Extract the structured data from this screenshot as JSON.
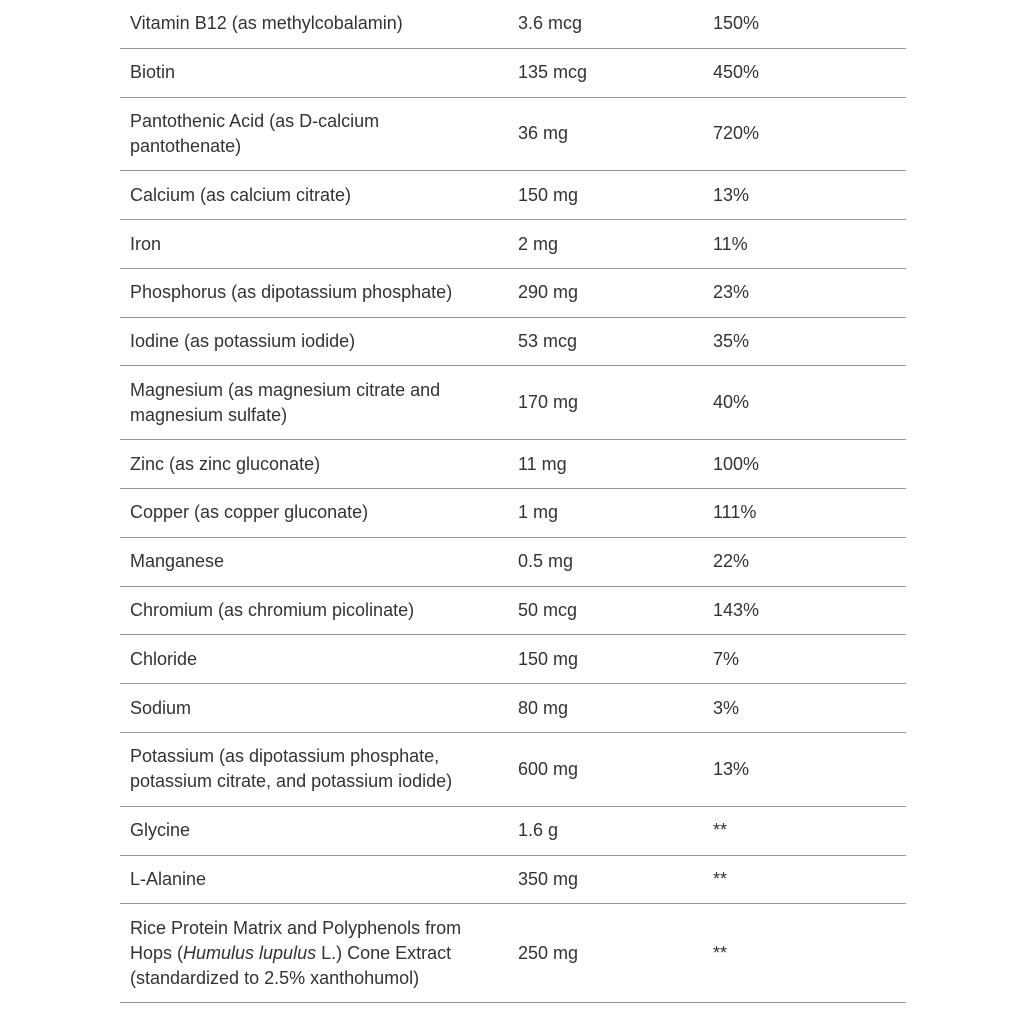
{
  "page": {
    "background_color": "#ffffff",
    "text_color": "#333333",
    "divider_color": "#979797"
  },
  "table": {
    "kind": "supplement-facts",
    "columns": [
      "nutrient",
      "amount_per_serving",
      "percent_daily_value"
    ],
    "rows": [
      {
        "name": [
          {
            "t": "Vitamin B12 (as methylcobalamin)"
          }
        ],
        "amount": "3.6 mcg",
        "dv": "150%"
      },
      {
        "name": [
          {
            "t": "Biotin"
          }
        ],
        "amount": "135 mcg",
        "dv": "450%"
      },
      {
        "name": [
          {
            "t": "Pantothenic Acid (as D-calcium pantothenate)"
          }
        ],
        "amount": "36 mg",
        "dv": "720%"
      },
      {
        "name": [
          {
            "t": "Calcium (as calcium citrate)"
          }
        ],
        "amount": "150 mg",
        "dv": "13%"
      },
      {
        "name": [
          {
            "t": "Iron"
          }
        ],
        "amount": "2 mg",
        "dv": "11%"
      },
      {
        "name": [
          {
            "t": "Phosphorus (as dipotassium phosphate)"
          }
        ],
        "amount": "290 mg",
        "dv": "23%"
      },
      {
        "name": [
          {
            "t": "Iodine (as potassium iodide)"
          }
        ],
        "amount": "53 mcg",
        "dv": "35%"
      },
      {
        "name": [
          {
            "t": "Magnesium (as magnesium citrate and magnesium sulfate)"
          }
        ],
        "amount": "170 mg",
        "dv": "40%"
      },
      {
        "name": [
          {
            "t": "Zinc (as zinc gluconate)"
          }
        ],
        "amount": "11 mg",
        "dv": "100%"
      },
      {
        "name": [
          {
            "t": "Copper (as copper gluconate)"
          }
        ],
        "amount": "1 mg",
        "dv": "111%"
      },
      {
        "name": [
          {
            "t": "Manganese"
          }
        ],
        "amount": "0.5 mg",
        "dv": "22%"
      },
      {
        "name": [
          {
            "t": "Chromium (as chromium picolinate)"
          }
        ],
        "amount": "50 mcg",
        "dv": "143%"
      },
      {
        "name": [
          {
            "t": "Chloride"
          }
        ],
        "amount": "150 mg",
        "dv": "7%"
      },
      {
        "name": [
          {
            "t": "Sodium"
          }
        ],
        "amount": "80 mg",
        "dv": "3%"
      },
      {
        "name": [
          {
            "t": "Potassium (as dipotassium phosphate, potassium citrate, and potassium iodide)"
          }
        ],
        "amount": "600 mg",
        "dv": "13%"
      },
      {
        "name": [
          {
            "t": "Glycine"
          }
        ],
        "amount": "1.6 g",
        "dv": "**"
      },
      {
        "name": [
          {
            "t": "L-Alanine"
          }
        ],
        "amount": "350 mg",
        "dv": "**"
      },
      {
        "name": [
          {
            "t": "Rice Protein Matrix and Polyphenols from Hops ("
          },
          {
            "t": "Humulus lupulus",
            "i": true
          },
          {
            "t": " L.) Cone Extract (standardized to 2.5% xanthohumol)"
          }
        ],
        "amount": "250 mg",
        "dv": "**"
      }
    ]
  }
}
